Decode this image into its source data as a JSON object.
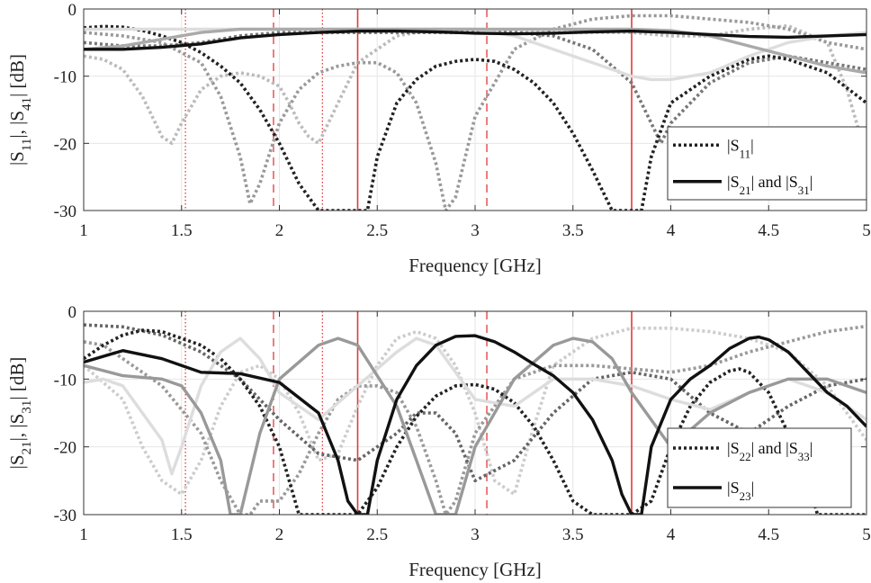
{
  "chart_data": [
    {
      "type": "line",
      "xlabel": "Frequency [GHz]",
      "ylabel_parts": [
        "|S",
        "11",
        "|, |S",
        "41",
        "| [dB]"
      ],
      "xlim": [
        1,
        5
      ],
      "ylim": [
        -30,
        0
      ],
      "xticks": [
        1,
        1.5,
        2,
        2.5,
        3,
        3.5,
        4,
        4.5,
        5
      ],
      "xtick_labels": [
        "1",
        "1.5",
        "2",
        "2.5",
        "3",
        "3.5",
        "4",
        "4.5",
        "5"
      ],
      "yticks": [
        -30,
        -20,
        -10,
        0
      ],
      "ytick_labels": [
        "-30",
        "-20",
        "-10",
        "0"
      ],
      "grid": true,
      "legend_position": "lower-right",
      "legend": [
        {
          "style": "dotted",
          "color": "#222222",
          "parts": [
            "|S",
            "11",
            "|"
          ]
        },
        {
          "style": "solid",
          "color": "#111111",
          "parts": [
            "|S",
            "21",
            "| and |S",
            "31",
            "|"
          ]
        }
      ],
      "vlines": [
        {
          "x": 1.52,
          "style": "dotted"
        },
        {
          "x": 1.97,
          "style": "dashed"
        },
        {
          "x": 2.22,
          "style": "dotted"
        },
        {
          "x": 2.4,
          "style": "solid"
        },
        {
          "x": 3.06,
          "style": "dashed"
        },
        {
          "x": 3.8,
          "style": "solid"
        }
      ],
      "series": [
        {
          "style": "dotted",
          "color": "#bbbbbb",
          "x": [
            1.0,
            1.1,
            1.2,
            1.3,
            1.4,
            1.45,
            1.5,
            1.6,
            1.7,
            1.8,
            1.9,
            2.0,
            2.05,
            2.1,
            2.15,
            2.2,
            2.3,
            2.4,
            2.6,
            2.8,
            3.0,
            3.2,
            3.4,
            3.6,
            3.8,
            4.0,
            4.2,
            4.4,
            4.6,
            4.8,
            4.9,
            5.0
          ],
          "y": [
            -7,
            -7.5,
            -9,
            -13,
            -19,
            -20,
            -17,
            -12,
            -10,
            -9.5,
            -10,
            -11.5,
            -14,
            -17,
            -19,
            -20,
            -14,
            -8,
            -4,
            -3,
            -3.5,
            -3.5,
            -3.5,
            -3.5,
            -3.5,
            -4,
            -4,
            -3,
            -2.5,
            -5,
            -12,
            -22
          ]
        },
        {
          "style": "dotted",
          "color": "#999999",
          "x": [
            1.0,
            1.2,
            1.4,
            1.6,
            1.7,
            1.8,
            1.85,
            1.9,
            2.0,
            2.1,
            2.2,
            2.3,
            2.4,
            2.5,
            2.6,
            2.7,
            2.8,
            2.85,
            2.9,
            3.0,
            3.2,
            3.4,
            3.6,
            3.8,
            4.0,
            4.2,
            4.4,
            4.6,
            4.8,
            5.0
          ],
          "y": [
            -3.5,
            -4,
            -5,
            -8,
            -13,
            -22,
            -29,
            -26,
            -17,
            -12,
            -9.5,
            -8.5,
            -8,
            -8,
            -9.5,
            -14,
            -23,
            -30,
            -28,
            -16,
            -6,
            -3,
            -1.5,
            -1,
            -1,
            -1.5,
            -2,
            -3,
            -5,
            -6
          ]
        },
        {
          "style": "dotted",
          "color": "#777777",
          "x": [
            1.0,
            1.2,
            1.4,
            1.6,
            1.8,
            2.0,
            2.2,
            2.4,
            2.6,
            2.8,
            3.0,
            3.2,
            3.4,
            3.6,
            3.8,
            3.9,
            3.95,
            4.0,
            4.2,
            4.4,
            4.6,
            4.8,
            5.0
          ],
          "y": [
            -5,
            -5.5,
            -5.5,
            -5,
            -4,
            -3.5,
            -3.5,
            -3.5,
            -3.5,
            -3.5,
            -3.5,
            -3.5,
            -4,
            -6,
            -11,
            -17,
            -20,
            -17,
            -11,
            -8,
            -7,
            -8,
            -9
          ]
        },
        {
          "style": "dotted",
          "color": "#222222",
          "x": [
            1.0,
            1.1,
            1.2,
            1.3,
            1.4,
            1.5,
            1.6,
            1.7,
            1.8,
            1.9,
            2.0,
            2.1,
            2.2,
            2.3,
            2.35,
            2.4,
            2.45,
            2.5,
            2.6,
            2.7,
            2.8,
            2.9,
            3.0,
            3.1,
            3.2,
            3.3,
            3.4,
            3.5,
            3.6,
            3.7,
            3.75,
            3.8,
            3.85,
            3.9,
            4.0,
            4.2,
            4.4,
            4.5,
            4.6,
            4.8,
            5.0
          ],
          "y": [
            -2.8,
            -2.6,
            -2.7,
            -3.2,
            -4,
            -5,
            -6.5,
            -8.5,
            -11,
            -15,
            -20,
            -26,
            -30,
            -30,
            -30,
            -30,
            -30,
            -22,
            -14,
            -10.5,
            -8.5,
            -7.8,
            -7.5,
            -7.8,
            -9,
            -11,
            -14,
            -18.5,
            -24,
            -30,
            -30,
            -30,
            -30,
            -22,
            -14,
            -10,
            -7.5,
            -7,
            -7.5,
            -9.5,
            -14
          ]
        },
        {
          "style": "solid",
          "color": "#dddddd",
          "x": [
            1.0,
            1.3,
            1.6,
            2.0,
            2.4,
            2.8,
            3.0,
            3.2,
            3.4,
            3.6,
            3.8,
            3.9,
            4.0,
            4.2,
            4.4,
            4.6,
            4.8,
            5.0
          ],
          "y": [
            -3,
            -3,
            -3,
            -3,
            -3,
            -3,
            -3,
            -4,
            -6,
            -8,
            -10,
            -10.5,
            -10.5,
            -9.5,
            -7,
            -5,
            -4,
            -3.5
          ]
        },
        {
          "style": "solid",
          "color": "#aaaaaa",
          "x": [
            1.0,
            1.2,
            1.4,
            1.6,
            1.8,
            2.0,
            2.2,
            2.4,
            2.6,
            2.8,
            3.0,
            3.2,
            3.4,
            3.6,
            3.8,
            4.0,
            4.2,
            4.4,
            4.6,
            4.8,
            5.0
          ],
          "y": [
            -6,
            -5.5,
            -4.5,
            -3.5,
            -3,
            -3,
            -3,
            -3,
            -3,
            -3,
            -3,
            -3,
            -3,
            -3,
            -3,
            -3.2,
            -4,
            -5.5,
            -7,
            -8.5,
            -9.5
          ]
        },
        {
          "style": "solid",
          "color": "#111111",
          "x": [
            1.0,
            1.2,
            1.4,
            1.6,
            1.8,
            2.0,
            2.2,
            2.4,
            2.6,
            2.8,
            3.0,
            3.2,
            3.4,
            3.6,
            3.8,
            4.0,
            4.2,
            4.4,
            4.6,
            4.8,
            5.0
          ],
          "y": [
            -6,
            -6,
            -5.7,
            -5.2,
            -4.3,
            -3.8,
            -3.5,
            -3.3,
            -3.3,
            -3.4,
            -3.6,
            -3.7,
            -3.6,
            -3.4,
            -3.3,
            -3.5,
            -3.8,
            -4.1,
            -4.2,
            -4,
            -3.8
          ]
        }
      ]
    },
    {
      "type": "line",
      "xlabel": "Frequency [GHz]",
      "ylabel_parts": [
        "|S",
        "21",
        "|, |S",
        "31",
        "| [dB]"
      ],
      "xlim": [
        1,
        5
      ],
      "ylim": [
        -30,
        0
      ],
      "xticks": [
        1,
        1.5,
        2,
        2.5,
        3,
        3.5,
        4,
        4.5,
        5
      ],
      "xtick_labels": [
        "1",
        "1.5",
        "2",
        "2.5",
        "3",
        "3.5",
        "4",
        "4.5",
        "5"
      ],
      "yticks": [
        -30,
        -20,
        -10,
        0
      ],
      "ytick_labels": [
        "-30",
        "-20",
        "-10",
        "0"
      ],
      "grid": true,
      "legend_position": "lower-right",
      "legend": [
        {
          "style": "dotted",
          "color": "#222222",
          "parts": [
            "|S",
            "22",
            "| and |S",
            "33",
            "|"
          ]
        },
        {
          "style": "solid",
          "color": "#111111",
          "parts": [
            "|S",
            "23",
            "|"
          ]
        }
      ],
      "vlines": [
        {
          "x": 1.52,
          "style": "dotted"
        },
        {
          "x": 1.97,
          "style": "dashed"
        },
        {
          "x": 2.22,
          "style": "dotted"
        },
        {
          "x": 2.4,
          "style": "solid"
        },
        {
          "x": 3.06,
          "style": "dashed"
        },
        {
          "x": 3.8,
          "style": "solid"
        }
      ],
      "series": [
        {
          "style": "dotted",
          "color": "#cccccc",
          "x": [
            1.0,
            1.2,
            1.3,
            1.4,
            1.5,
            1.6,
            1.7,
            1.8,
            1.9,
            2.0,
            2.1,
            2.2,
            2.3,
            2.4,
            2.5,
            2.6,
            2.7,
            2.8,
            2.9,
            3.0,
            3.1,
            3.2,
            3.3,
            3.4,
            3.6,
            3.8,
            4.0,
            4.2,
            4.4,
            4.6,
            4.8,
            5.0
          ],
          "y": [
            -8,
            -13,
            -20,
            -25,
            -27,
            -22,
            -14,
            -9,
            -8,
            -10,
            -15,
            -22,
            -21,
            -14,
            -8,
            -4,
            -3,
            -4,
            -8,
            -15,
            -25,
            -27,
            -17,
            -8,
            -4,
            -2.5,
            -2.5,
            -3,
            -4,
            -6,
            -11,
            -19
          ]
        },
        {
          "style": "dotted",
          "color": "#999999",
          "x": [
            1.0,
            1.1,
            1.2,
            1.4,
            1.6,
            1.7,
            1.8,
            1.85,
            1.9,
            2.0,
            2.1,
            2.2,
            2.3,
            2.4,
            2.5,
            2.6,
            2.7,
            2.8,
            2.85,
            2.9,
            3.0,
            3.2,
            3.4,
            3.6,
            3.8,
            4.0,
            4.2,
            4.4,
            4.6,
            4.8,
            5.0
          ],
          "y": [
            -4.5,
            -5,
            -7,
            -11,
            -18,
            -25,
            -30,
            -30,
            -28,
            -28,
            -24,
            -18,
            -13,
            -11,
            -11,
            -12,
            -17,
            -25,
            -30,
            -28,
            -18,
            -10,
            -8,
            -8,
            -8.5,
            -9,
            -8,
            -6,
            -4.5,
            -3,
            -2.2
          ]
        },
        {
          "style": "dotted",
          "color": "#666666",
          "x": [
            1.0,
            1.2,
            1.4,
            1.6,
            1.8,
            2.0,
            2.2,
            2.4,
            2.6,
            2.7,
            2.8,
            2.9,
            3.0,
            3.2,
            3.4,
            3.6,
            3.8,
            4.0,
            4.2,
            4.4,
            4.6,
            4.8,
            5.0
          ],
          "y": [
            -2,
            -2.3,
            -3.5,
            -6,
            -10,
            -16,
            -21,
            -22,
            -18,
            -15,
            -15,
            -18,
            -25,
            -22,
            -15,
            -10,
            -9,
            -10,
            -15,
            -18,
            -14,
            -11,
            -10
          ]
        },
        {
          "style": "dotted",
          "color": "#222222",
          "x": [
            1.0,
            1.1,
            1.2,
            1.3,
            1.4,
            1.5,
            1.6,
            1.7,
            1.8,
            1.9,
            2.0,
            2.05,
            2.1,
            2.2,
            2.3,
            2.4,
            2.5,
            2.6,
            2.7,
            2.8,
            2.9,
            3.0,
            3.1,
            3.2,
            3.3,
            3.4,
            3.5,
            3.6,
            3.7,
            3.75,
            3.8,
            3.9,
            4.0,
            4.1,
            4.2,
            4.3,
            4.35,
            4.4,
            4.5,
            4.6,
            4.7,
            4.75,
            5.0
          ],
          "y": [
            -7,
            -5,
            -3.5,
            -2.8,
            -3,
            -4,
            -5,
            -7,
            -10,
            -14,
            -20,
            -25,
            -30,
            -30,
            -30,
            -30,
            -26,
            -20,
            -15.5,
            -12.5,
            -11,
            -10.8,
            -11.5,
            -13.5,
            -17,
            -22,
            -28,
            -30,
            -30,
            -30,
            -30,
            -28,
            -20,
            -14,
            -10.5,
            -8.8,
            -8.5,
            -9,
            -12,
            -18,
            -25,
            -30,
            -30
          ]
        },
        {
          "style": "solid",
          "color": "#dddddd",
          "x": [
            1.0,
            1.1,
            1.2,
            1.4,
            1.45,
            1.5,
            1.6,
            1.7,
            1.8,
            1.9,
            2.0,
            2.2,
            2.4,
            2.6,
            2.7,
            2.8,
            2.9,
            3.0,
            3.2,
            3.4,
            3.6,
            3.8,
            4.0,
            4.2,
            4.4,
            4.6,
            4.8,
            5.0
          ],
          "y": [
            -10.5,
            -10,
            -11,
            -19,
            -24,
            -20,
            -11,
            -6,
            -4,
            -7,
            -12,
            -16,
            -11,
            -6,
            -4,
            -5,
            -9,
            -13,
            -14,
            -10,
            -10,
            -11,
            -13,
            -14.5,
            -12,
            -10,
            -12,
            -16
          ]
        },
        {
          "style": "solid",
          "color": "#999999",
          "x": [
            1.0,
            1.2,
            1.4,
            1.5,
            1.6,
            1.7,
            1.75,
            1.8,
            1.9,
            2.0,
            2.2,
            2.3,
            2.4,
            2.6,
            2.7,
            2.8,
            2.9,
            3.0,
            3.2,
            3.4,
            3.5,
            3.6,
            3.7,
            3.8,
            4.0,
            4.2,
            4.4,
            4.6,
            4.8,
            5.0
          ],
          "y": [
            -8,
            -9.5,
            -10,
            -11,
            -15,
            -22,
            -30,
            -30,
            -18,
            -10,
            -5,
            -4,
            -5,
            -14,
            -22,
            -30,
            -30,
            -20,
            -10,
            -5,
            -4,
            -4.5,
            -7,
            -12,
            -20,
            -15,
            -12,
            -10,
            -10,
            -12
          ]
        },
        {
          "style": "solid",
          "color": "#111111",
          "x": [
            1.0,
            1.2,
            1.4,
            1.6,
            1.8,
            2.0,
            2.2,
            2.3,
            2.35,
            2.4,
            2.45,
            2.5,
            2.6,
            2.7,
            2.8,
            2.9,
            3.0,
            3.1,
            3.2,
            3.3,
            3.4,
            3.5,
            3.6,
            3.7,
            3.75,
            3.8,
            3.85,
            3.9,
            4.0,
            4.1,
            4.2,
            4.3,
            4.4,
            4.45,
            4.5,
            4.6,
            4.7,
            4.8,
            4.9,
            5.0
          ],
          "y": [
            -7.5,
            -5.8,
            -7,
            -9,
            -9.2,
            -10.5,
            -15,
            -22,
            -28,
            -30,
            -30,
            -22,
            -13,
            -8,
            -5,
            -3.7,
            -3.6,
            -4.5,
            -6,
            -7.8,
            -9.5,
            -12,
            -16,
            -22,
            -27,
            -30,
            -30,
            -20,
            -13,
            -10,
            -8,
            -5.5,
            -4,
            -3.8,
            -4.2,
            -6,
            -9,
            -12,
            -14,
            -17
          ]
        }
      ]
    }
  ]
}
